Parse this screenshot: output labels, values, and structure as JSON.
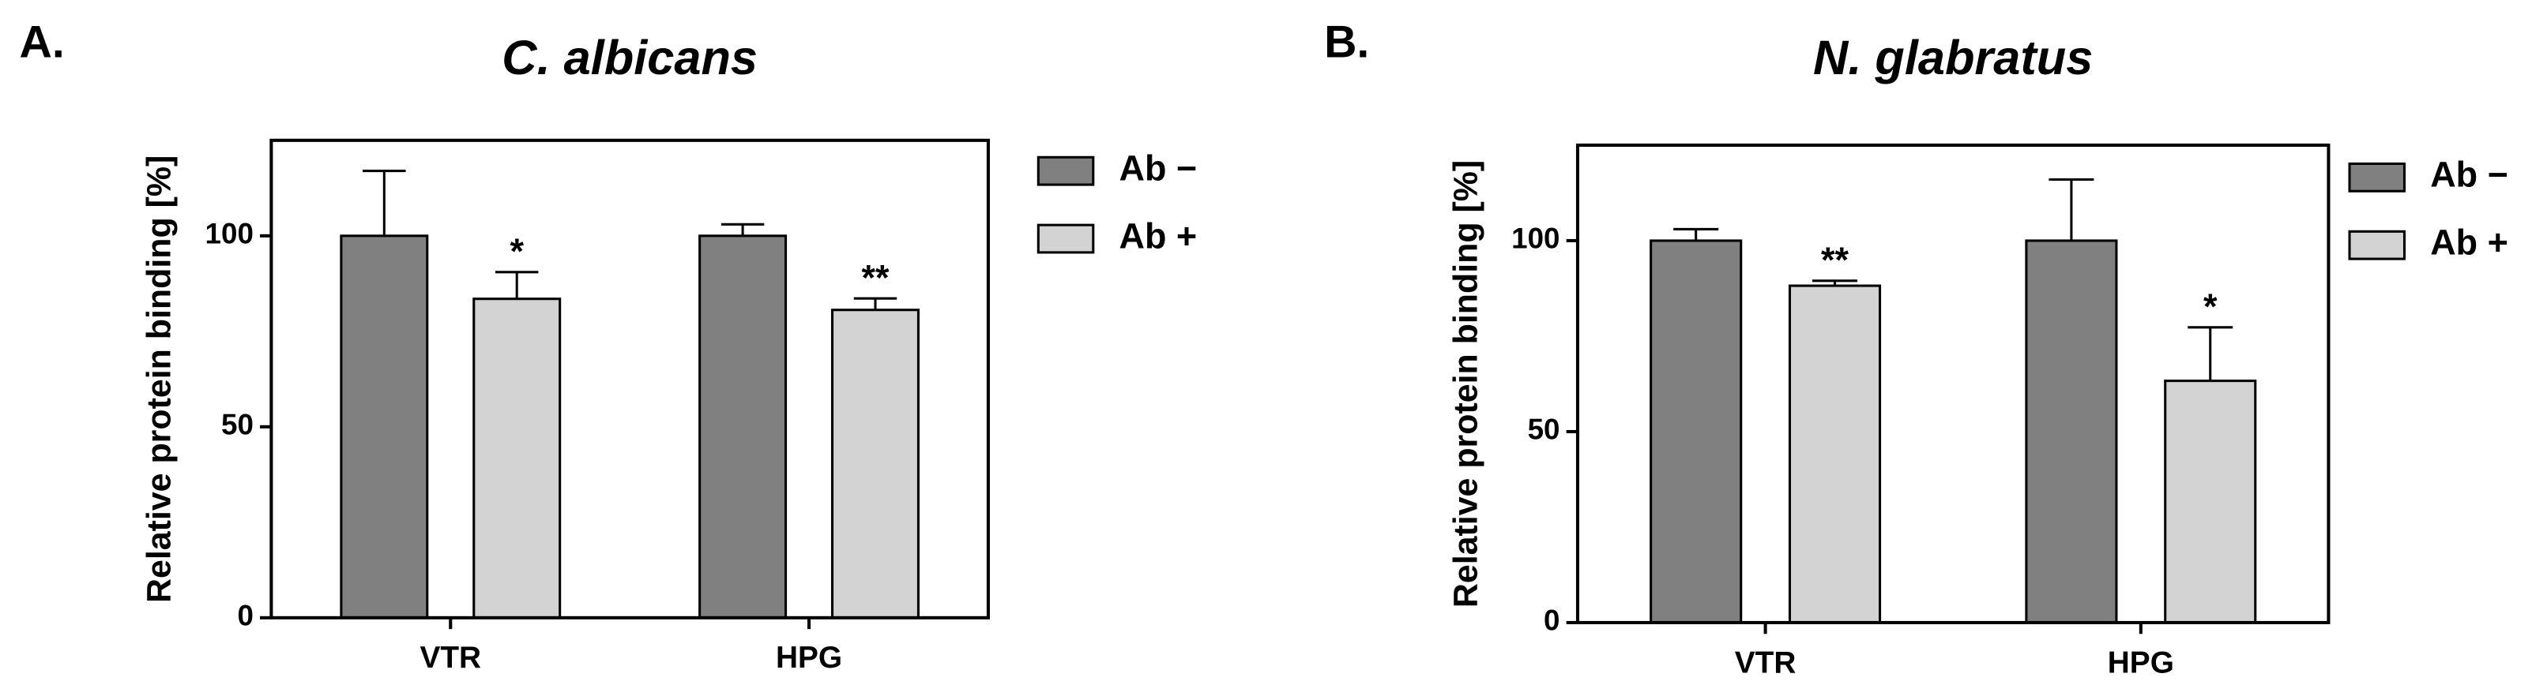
{
  "chart_data": [
    {
      "type": "bar",
      "panel_label": "A.",
      "title": "C. albicans",
      "ylabel": "Relative protein binding [%]",
      "categories": [
        "VTR",
        "HPG"
      ],
      "series": [
        {
          "name": "Ab −",
          "color": "#808080",
          "values": [
            100,
            100
          ],
          "errors": [
            17,
            3
          ]
        },
        {
          "name": "Ab +",
          "color": "#d3d3d3",
          "values": [
            83.5,
            80.6
          ],
          "errors": [
            7,
            3
          ],
          "annotations": [
            "*",
            "**"
          ]
        }
      ],
      "ylim": [
        0,
        125
      ],
      "yticks": [
        0,
        50,
        100
      ]
    },
    {
      "type": "bar",
      "panel_label": "B.",
      "title": "N. glabratus",
      "ylabel": "Relative protein binding [%]",
      "categories": [
        "VTR",
        "HPG"
      ],
      "series": [
        {
          "name": "Ab −",
          "color": "#808080",
          "values": [
            100,
            100
          ],
          "errors": [
            3,
            16
          ]
        },
        {
          "name": "Ab +",
          "color": "#d3d3d3",
          "values": [
            88.2,
            63.3
          ],
          "errors": [
            1.3,
            14
          ],
          "annotations": [
            "**",
            "*"
          ]
        }
      ],
      "ylim": [
        0,
        125
      ],
      "yticks": [
        0,
        50,
        100
      ]
    }
  ]
}
